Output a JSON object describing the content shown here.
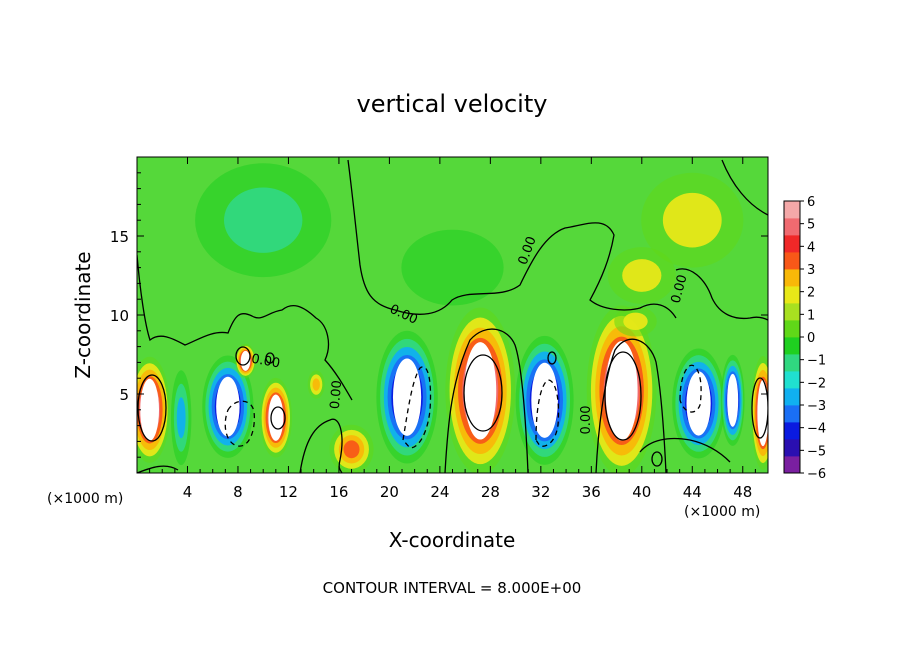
{
  "chart_data": {
    "type": "heatmap",
    "title": "vertical velocity",
    "xlabel": "X-coordinate",
    "ylabel": "Z-coordinate",
    "x_unit_label": "(×1000 m)",
    "x_unit_label_right": "(×1000 m)",
    "xlim": [
      0,
      50
    ],
    "ylim": [
      0,
      20
    ],
    "xticks": [
      4,
      8,
      12,
      16,
      20,
      24,
      28,
      32,
      36,
      40,
      44,
      48
    ],
    "yticks": [
      5,
      10,
      15
    ],
    "colorbar": {
      "range": [
        -6,
        6
      ],
      "ticks": [
        6,
        5,
        4,
        3,
        2,
        1,
        0,
        -1,
        -2,
        -3,
        -4,
        -5,
        -6
      ],
      "colors": [
        "#7a1fa0",
        "#2a0fb0",
        "#0a1ae0",
        "#1a6ff5",
        "#10b0f0",
        "#20e0d0",
        "#30d880",
        "#1fd020",
        "#60d818",
        "#a8e020",
        "#e8e818",
        "#f8b808",
        "#f85818",
        "#f02828",
        "#f06a70",
        "#f4a8a8"
      ],
      "background_color": "#55d83a"
    },
    "contour_interval_text": "CONTOUR INTERVAL = 8.000E+00",
    "contour_labels": [
      "0.00",
      "0.00",
      "0.00",
      "0.00",
      "0.00",
      "0.00"
    ],
    "cells": [
      {
        "x": 1.0,
        "z": 4.0,
        "w": 2.4,
        "h": 5.6,
        "value": 11
      },
      {
        "x": 3.5,
        "z": 3.5,
        "w": 1.2,
        "h": 5.0,
        "value": -3
      },
      {
        "x": 7.2,
        "z": 4.2,
        "w": 3.0,
        "h": 5.4,
        "value": -12
      },
      {
        "x": 8.6,
        "z": 7.1,
        "w": 1.2,
        "h": 1.8,
        "value": 7
      },
      {
        "x": 11.0,
        "z": 3.5,
        "w": 1.9,
        "h": 4.2,
        "value": 8
      },
      {
        "x": 14.2,
        "z": 5.6,
        "w": 1.0,
        "h": 1.5,
        "value": 3
      },
      {
        "x": 17.0,
        "z": 1.5,
        "w": 2.6,
        "h": 2.6,
        "value": 4
      },
      {
        "x": 21.4,
        "z": 4.8,
        "w": 3.6,
        "h": 7.0,
        "value": -12
      },
      {
        "x": 27.2,
        "z": 5.2,
        "w": 4.1,
        "h": 8.8,
        "value": 13
      },
      {
        "x": 32.3,
        "z": 4.6,
        "w": 3.4,
        "h": 6.8,
        "value": -12
      },
      {
        "x": 38.4,
        "z": 5.2,
        "w": 4.1,
        "h": 9.0,
        "value": 14
      },
      {
        "x": 39.5,
        "z": 9.6,
        "w": 2.5,
        "h": 1.6,
        "value": 2
      },
      {
        "x": 44.5,
        "z": 4.4,
        "w": 3.1,
        "h": 5.8,
        "value": -11
      },
      {
        "x": 47.2,
        "z": 4.6,
        "w": 1.4,
        "h": 4.8,
        "value": -7
      },
      {
        "x": 49.6,
        "z": 3.8,
        "w": 1.4,
        "h": 6.0,
        "value": 9
      },
      {
        "x": 10.0,
        "z": 16.0,
        "w": 8.0,
        "h": 6.0,
        "value": -1.2
      },
      {
        "x": 25.0,
        "z": 13.0,
        "w": 6.0,
        "h": 4.0,
        "value": -1.0
      },
      {
        "x": 44.0,
        "z": 16.0,
        "w": 6.0,
        "h": 5.0,
        "value": 1.4
      },
      {
        "x": 40.0,
        "z": 12.5,
        "w": 4.0,
        "h": 3.0,
        "value": 1.6
      }
    ]
  }
}
